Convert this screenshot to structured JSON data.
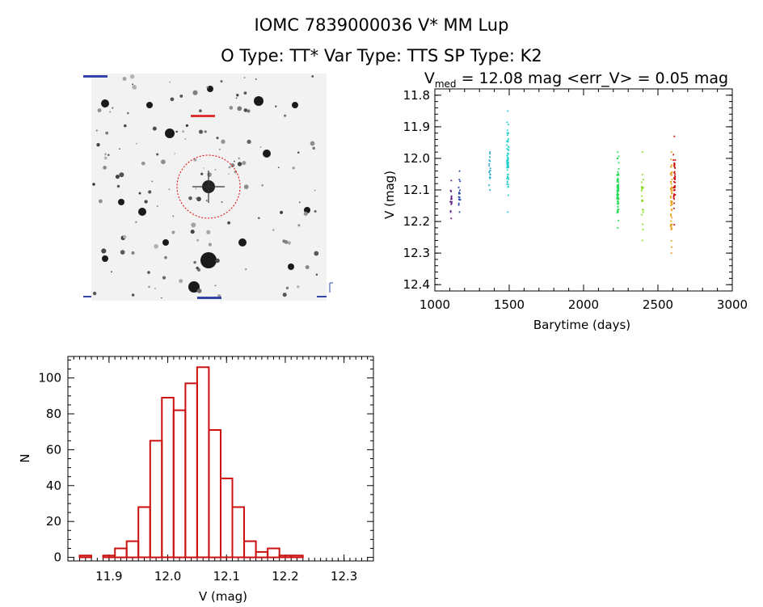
{
  "header": {
    "title_line1": "IOMC 7839000036    V* MM Lup",
    "title_line2": "O Type: TT*  Var Type: TTS  SP Type: K2"
  },
  "finder_image": {
    "description_icon": "star-field-image",
    "target_circle_color": "#dd0000"
  },
  "chart_data": [
    {
      "type": "scatter",
      "title_prefix": "V",
      "title_subscript": "med",
      "title_suffix": " = 12.08 mag <err_V> = 0.05 mag",
      "xlabel": "Barytime (days)",
      "ylabel": "V (mag)",
      "xlim": [
        1000,
        3000
      ],
      "ylim": [
        12.42,
        11.78
      ],
      "y_inverted": true,
      "xticks": [
        "1000",
        "1500",
        "2000",
        "2500",
        "3000"
      ],
      "yticks": [
        "11.8",
        "11.9",
        "12.0",
        "12.1",
        "12.2",
        "12.3",
        "12.4"
      ],
      "grid": false,
      "clusters": [
        {
          "x": 1110,
          "ymin": 12.07,
          "ymax": 12.19,
          "n": 14,
          "color": "#5a1a8a"
        },
        {
          "x": 1165,
          "ymin": 12.04,
          "ymax": 12.17,
          "n": 14,
          "color": "#1f3fa8"
        },
        {
          "x": 1370,
          "ymin": 11.98,
          "ymax": 12.1,
          "n": 16,
          "color": "#1fa6c8"
        },
        {
          "x": 1490,
          "ymin": 11.85,
          "ymax": 12.17,
          "n": 60,
          "color": "#22d0c8"
        },
        {
          "x": 2230,
          "ymin": 11.98,
          "ymax": 12.22,
          "n": 70,
          "color": "#22dd55"
        },
        {
          "x": 2395,
          "ymin": 11.98,
          "ymax": 12.26,
          "n": 22,
          "color": "#88dd22"
        },
        {
          "x": 2590,
          "ymin": 11.98,
          "ymax": 12.3,
          "n": 50,
          "color": "#e89a10"
        },
        {
          "x": 2610,
          "ymin": 11.93,
          "ymax": 12.21,
          "n": 40,
          "color": "#cc1111"
        }
      ]
    },
    {
      "type": "bar",
      "xlabel": "V (mag)",
      "ylabel": "N",
      "xlim": [
        11.83,
        12.35
      ],
      "ylim": [
        -2,
        112
      ],
      "xticks": [
        "11.9",
        "12.0",
        "12.1",
        "12.2",
        "12.3"
      ],
      "yticks": [
        "0",
        "20",
        "40",
        "60",
        "80",
        "100"
      ],
      "bin_width": 0.02,
      "bin_starts": [
        11.85,
        11.87,
        11.89,
        11.91,
        11.93,
        11.95,
        11.97,
        11.99,
        12.01,
        12.03,
        12.05,
        12.07,
        12.09,
        12.11,
        12.13,
        12.15,
        12.17,
        12.19,
        12.21,
        12.23,
        12.25,
        12.27,
        12.29
      ],
      "values": [
        1,
        0,
        1,
        5,
        9,
        28,
        65,
        89,
        82,
        97,
        106,
        71,
        44,
        28,
        9,
        3,
        5,
        1,
        1,
        0,
        0,
        0,
        0
      ],
      "bar_color": "#cc1111"
    }
  ]
}
